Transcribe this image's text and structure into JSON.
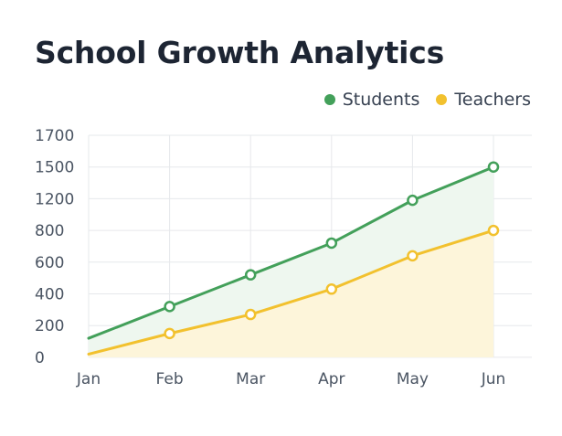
{
  "title": "School Growth Analytics",
  "chart_data": {
    "type": "area",
    "title": "School Growth Analytics",
    "categories": [
      "Jan",
      "Feb",
      "Mar",
      "Apr",
      "May",
      "Jun"
    ],
    "y_tick_labels": [
      0,
      200,
      400,
      600,
      800,
      1200,
      1500,
      1700
    ],
    "series": [
      {
        "name": "Students",
        "color": "#43a05a",
        "fill": "#eef7ef",
        "values": [
          120,
          320,
          520,
          720,
          1180,
          1500
        ]
      },
      {
        "name": "Teachers",
        "color": "#f2c12e",
        "fill": "#fdf5da",
        "values": [
          20,
          150,
          270,
          430,
          640,
          800
        ]
      }
    ],
    "legend_position": "top-right",
    "grid": true,
    "xlabel": "",
    "ylabel": ""
  }
}
